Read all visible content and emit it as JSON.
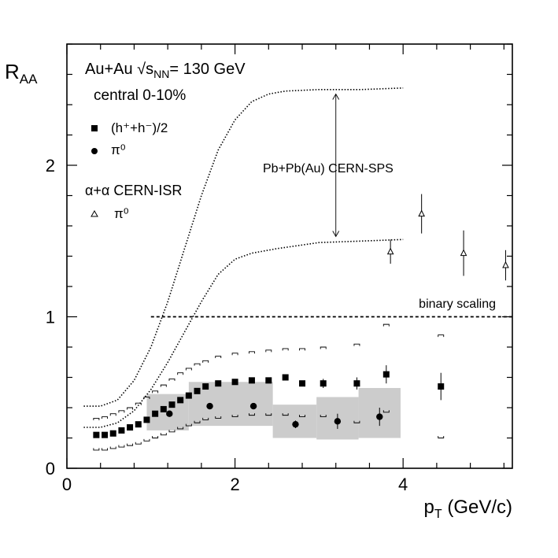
{
  "chart_data": {
    "type": "scatter",
    "ylabel": {
      "main": "R",
      "sub": "AA"
    },
    "xlabel": {
      "main": "p",
      "sub": "T",
      "unit": " (GeV/c)"
    },
    "xlim": [
      0,
      5.3
    ],
    "ylim": [
      0,
      2.8
    ],
    "xticks": [
      0,
      2,
      4
    ],
    "yticks": [
      0,
      1,
      2
    ],
    "xtick_labels": [
      "0",
      "2",
      "4"
    ],
    "ytick_labels": [
      "0",
      "1",
      "2"
    ],
    "legend": {
      "header_main": "Au+Au ",
      "header_sqrt": "√s",
      "header_sub": "NN",
      "header_rest": "= 130 GeV",
      "centrality": "central 0-10%",
      "charged_label": "(h⁺+h⁻)/2",
      "pi0_label": "π⁰",
      "isr_header": "α+α CERN-ISR",
      "isr_pi0_label": "π⁰"
    },
    "annotations": {
      "sps_band": "Pb+Pb(Au) CERN-SPS",
      "binary": "binary scaling"
    },
    "binary_scaling_y": 1.0,
    "series": [
      {
        "name": "(h+ + h-)/2",
        "marker": "square",
        "points": [
          [
            0.35,
            0.22
          ],
          [
            0.45,
            0.22
          ],
          [
            0.55,
            0.23
          ],
          [
            0.65,
            0.25
          ],
          [
            0.75,
            0.27
          ],
          [
            0.85,
            0.29
          ],
          [
            0.95,
            0.32
          ],
          [
            1.05,
            0.36
          ],
          [
            1.15,
            0.39
          ],
          [
            1.25,
            0.42
          ],
          [
            1.35,
            0.45
          ],
          [
            1.45,
            0.48
          ],
          [
            1.55,
            0.51
          ],
          [
            1.65,
            0.54
          ],
          [
            1.8,
            0.56
          ],
          [
            2.0,
            0.57
          ],
          [
            2.2,
            0.58
          ],
          [
            2.4,
            0.58
          ],
          [
            2.6,
            0.6
          ],
          [
            2.8,
            0.56
          ],
          [
            3.05,
            0.56
          ],
          [
            3.45,
            0.56
          ],
          [
            3.8,
            0.62
          ],
          [
            4.45,
            0.54
          ]
        ],
        "errors": [
          [
            3.05,
            0.03
          ],
          [
            3.45,
            0.04
          ],
          [
            3.8,
            0.06
          ],
          [
            4.45,
            0.09
          ]
        ]
      },
      {
        "name": "pi0",
        "marker": "circle",
        "points": [
          [
            1.22,
            0.36
          ],
          [
            1.7,
            0.41
          ],
          [
            2.22,
            0.41
          ],
          [
            2.72,
            0.29
          ],
          [
            3.22,
            0.31
          ],
          [
            3.72,
            0.34
          ]
        ],
        "errors": [
          [
            2.72,
            0.025
          ],
          [
            3.22,
            0.05
          ],
          [
            3.72,
            0.06
          ]
        ]
      },
      {
        "name": "alpha+alpha pi0 (CERN-ISR)",
        "marker": "triangle-open",
        "points": [
          [
            3.85,
            1.43
          ],
          [
            4.22,
            1.68
          ],
          [
            4.72,
            1.42
          ],
          [
            5.22,
            1.34
          ]
        ],
        "errors": [
          [
            3.85,
            0.08
          ],
          [
            4.22,
            0.13
          ],
          [
            4.72,
            0.15
          ],
          [
            5.22,
            0.1
          ]
        ]
      }
    ],
    "pi0_syst_boxes": [
      [
        0.95,
        1.45,
        0.25,
        0.49
      ],
      [
        1.45,
        2.45,
        0.28,
        0.57
      ],
      [
        2.45,
        2.97,
        0.2,
        0.42
      ],
      [
        2.97,
        3.47,
        0.19,
        0.47
      ],
      [
        3.47,
        3.97,
        0.2,
        0.53
      ]
    ],
    "charged_syst_upper": [
      [
        0.35,
        0.33
      ],
      [
        0.45,
        0.34
      ],
      [
        0.55,
        0.36
      ],
      [
        0.65,
        0.38
      ],
      [
        0.75,
        0.4
      ],
      [
        0.85,
        0.43
      ],
      [
        0.95,
        0.47
      ],
      [
        1.05,
        0.51
      ],
      [
        1.15,
        0.55
      ],
      [
        1.25,
        0.59
      ],
      [
        1.35,
        0.63
      ],
      [
        1.45,
        0.66
      ],
      [
        1.55,
        0.69
      ],
      [
        1.65,
        0.71
      ],
      [
        1.8,
        0.74
      ],
      [
        2.0,
        0.76
      ],
      [
        2.2,
        0.77
      ],
      [
        2.4,
        0.78
      ],
      [
        2.6,
        0.79
      ],
      [
        2.8,
        0.79
      ],
      [
        3.05,
        0.8
      ],
      [
        3.45,
        0.82
      ],
      [
        3.8,
        0.95
      ],
      [
        4.45,
        0.88
      ]
    ],
    "charged_syst_lower": [
      [
        0.35,
        0.12
      ],
      [
        0.45,
        0.12
      ],
      [
        0.55,
        0.13
      ],
      [
        0.65,
        0.14
      ],
      [
        0.75,
        0.15
      ],
      [
        0.85,
        0.16
      ],
      [
        0.95,
        0.18
      ],
      [
        1.05,
        0.2
      ],
      [
        1.15,
        0.22
      ],
      [
        1.25,
        0.24
      ],
      [
        1.35,
        0.26
      ],
      [
        1.45,
        0.28
      ],
      [
        1.55,
        0.3
      ],
      [
        1.65,
        0.32
      ],
      [
        1.8,
        0.33
      ],
      [
        2.0,
        0.34
      ],
      [
        2.2,
        0.35
      ],
      [
        2.4,
        0.35
      ],
      [
        2.6,
        0.35
      ],
      [
        2.8,
        0.34
      ],
      [
        3.05,
        0.34
      ],
      [
        3.45,
        0.3
      ],
      [
        3.8,
        0.37
      ],
      [
        4.45,
        0.2
      ]
    ],
    "sps_upper_curve": [
      [
        0.2,
        0.41
      ],
      [
        0.4,
        0.41
      ],
      [
        0.6,
        0.45
      ],
      [
        0.8,
        0.58
      ],
      [
        1.0,
        0.8
      ],
      [
        1.2,
        1.1
      ],
      [
        1.4,
        1.45
      ],
      [
        1.6,
        1.8
      ],
      [
        1.8,
        2.1
      ],
      [
        2.0,
        2.3
      ],
      [
        2.2,
        2.42
      ],
      [
        2.4,
        2.47
      ],
      [
        2.6,
        2.49
      ],
      [
        3.0,
        2.5
      ],
      [
        3.5,
        2.5
      ],
      [
        4.0,
        2.51
      ]
    ],
    "sps_lower_curve": [
      [
        0.2,
        0.27
      ],
      [
        0.4,
        0.27
      ],
      [
        0.6,
        0.3
      ],
      [
        0.8,
        0.38
      ],
      [
        1.0,
        0.52
      ],
      [
        1.2,
        0.7
      ],
      [
        1.4,
        0.9
      ],
      [
        1.6,
        1.1
      ],
      [
        1.8,
        1.28
      ],
      [
        2.0,
        1.38
      ],
      [
        2.2,
        1.42
      ],
      [
        2.5,
        1.45
      ],
      [
        3.0,
        1.49
      ],
      [
        3.5,
        1.5
      ],
      [
        4.0,
        1.51
      ]
    ],
    "sps_arrow": {
      "x": 3.2,
      "y_top": 2.47,
      "y_bottom": 1.53
    }
  }
}
